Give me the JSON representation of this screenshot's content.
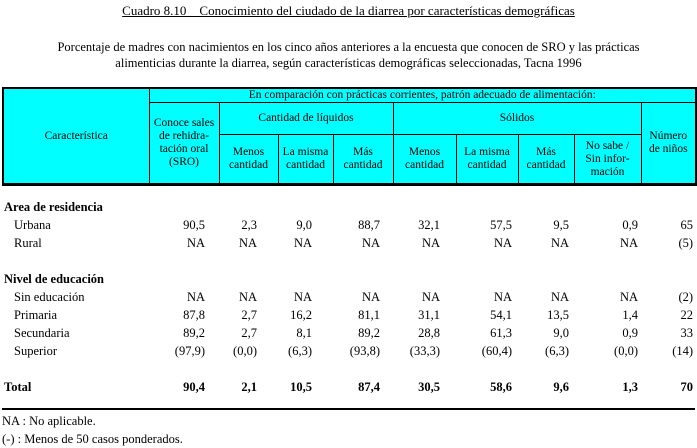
{
  "page": {
    "title": "Cuadro 8.10    Conocimiento del ciudado de la diarrea por características demográficas",
    "subtitle_line1": "Porcentaje de madres con nacimientos en los cinco años anteriores a la encuesta que conocen de SRO y las prácticas",
    "subtitle_line2": "alimenticias durante la diarrea, según características demográficas seleccionadas, Tacna 1996"
  },
  "colors": {
    "header_background": "#00FFFF",
    "border": "#000000"
  },
  "table": {
    "header": {
      "characteristic": "Característica",
      "band": "En comparación con prácticas corrientes, patrón adecuado de alimentación:",
      "sro": "Conoce sales\nde rehidra-\ntación oral\n(SRO)",
      "liquids_group": "Cantidad de líquidos",
      "solids_group": "Sólidos",
      "children": "Número\nde niños",
      "liquid_cols": [
        "Menos\ncantidad",
        "La misma\ncantidad",
        "Más\ncantidad"
      ],
      "solid_cols": [
        "Menos\ncantidad",
        "La misma\ncantidad",
        "Más\ncantidad",
        "No sabe /\nSin infor-\nmación"
      ]
    },
    "rows": [
      {
        "type": "group",
        "label": "Area de residencia"
      },
      {
        "type": "data",
        "label": "Urbana",
        "values": [
          "90,5",
          "2,3",
          "9,0",
          "88,7",
          "32,1",
          "57,5",
          "9,5",
          "0,9",
          "65"
        ]
      },
      {
        "type": "data",
        "label": "Rural",
        "values": [
          "NA",
          "NA",
          "NA",
          "NA",
          "NA",
          "NA",
          "NA",
          "NA",
          "(5)"
        ]
      },
      {
        "type": "spacer"
      },
      {
        "type": "group",
        "label": "Nivel de educación"
      },
      {
        "type": "data",
        "label": "Sin educación",
        "values": [
          "NA",
          "NA",
          "NA",
          "NA",
          "NA",
          "NA",
          "NA",
          "NA",
          "(2)"
        ]
      },
      {
        "type": "data",
        "label": "Primaria",
        "values": [
          "87,8",
          "2,7",
          "16,2",
          "81,1",
          "31,1",
          "54,1",
          "13,5",
          "1,4",
          "22"
        ]
      },
      {
        "type": "data",
        "label": "Secundaria",
        "values": [
          "89,2",
          "2,7",
          "8,1",
          "89,2",
          "28,8",
          "61,3",
          "9,0",
          "0,9",
          "33"
        ]
      },
      {
        "type": "data",
        "label": "Superior",
        "values": [
          "(97,9)",
          "(0,0)",
          "(6,3)",
          "(93,8)",
          "(33,3)",
          "(60,4)",
          "(6,3)",
          "(0,0)",
          "(14)"
        ]
      },
      {
        "type": "spacer"
      },
      {
        "type": "total",
        "label": "Total",
        "values": [
          "90,4",
          "2,1",
          "10,5",
          "87,4",
          "30,5",
          "58,6",
          "9,6",
          "1,3",
          "70"
        ]
      }
    ]
  },
  "footnotes": [
    "NA : No aplicable.",
    "(-) : Menos de 50 casos ponderados."
  ]
}
